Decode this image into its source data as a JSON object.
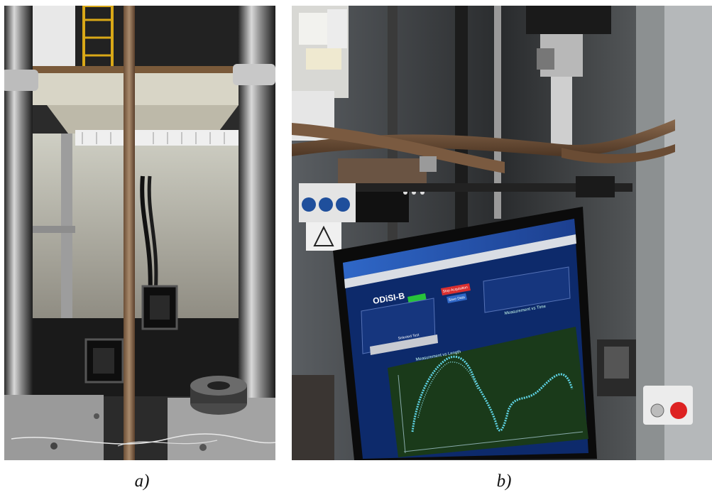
{
  "panels": {
    "a": {
      "caption": "a)"
    },
    "b": {
      "caption": "b)"
    }
  },
  "monitor": {
    "app_title": "ODiSI-B",
    "buttons": {
      "stop_acquisition": "Stop Acquisition",
      "save_data": "Save Data"
    },
    "section_selected_test": "Selected Test",
    "plot_length_title": "Measurement vs Length",
    "plot_time_title": "Measurement vs Time"
  },
  "colors": {
    "monitor_bg": "#0d2a6b",
    "plot_bg": "#1a3a1a",
    "trace": "#5fd4e6",
    "start_button": "#27c43a",
    "stop_button": "#d93030"
  },
  "icons": [
    "person-icon",
    "safety-pictogram-icon",
    "warning-triangle-icon",
    "emergency-stop-icon"
  ]
}
